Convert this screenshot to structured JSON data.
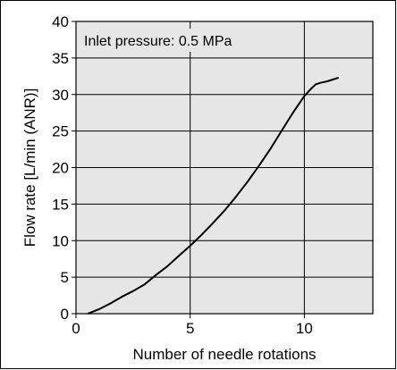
{
  "chart_data": {
    "type": "line",
    "title": "",
    "annotation": "Inlet pressure: 0.5 MPa",
    "xlabel": "Number of needle rotations",
    "ylabel": "Flow rate [L/min (ANR)]",
    "xlim": [
      0,
      13
    ],
    "ylim": [
      0,
      40
    ],
    "x_ticks": [
      0,
      5,
      10
    ],
    "y_ticks": [
      0,
      5,
      10,
      15,
      20,
      25,
      30,
      35,
      40
    ],
    "grid": true,
    "plot_background": "#e6e6e6",
    "line_color": "#000000",
    "series": [
      {
        "x": [
          0.5,
          0.6,
          1.0,
          1.5,
          2.0,
          2.5,
          3.0,
          3.5,
          4.0,
          4.5,
          5.0,
          5.5,
          6.0,
          6.5,
          7.0,
          7.5,
          8.0,
          8.5,
          9.0,
          9.5,
          10.0,
          10.3,
          10.5,
          10.7,
          11.0,
          11.5
        ],
        "y": [
          0.0,
          0.1,
          0.6,
          1.4,
          2.3,
          3.1,
          4.0,
          5.3,
          6.5,
          7.9,
          9.3,
          10.8,
          12.4,
          14.1,
          16.0,
          18.0,
          20.2,
          22.5,
          25.0,
          27.5,
          29.8,
          30.8,
          31.4,
          31.6,
          31.8,
          32.3
        ]
      }
    ]
  }
}
